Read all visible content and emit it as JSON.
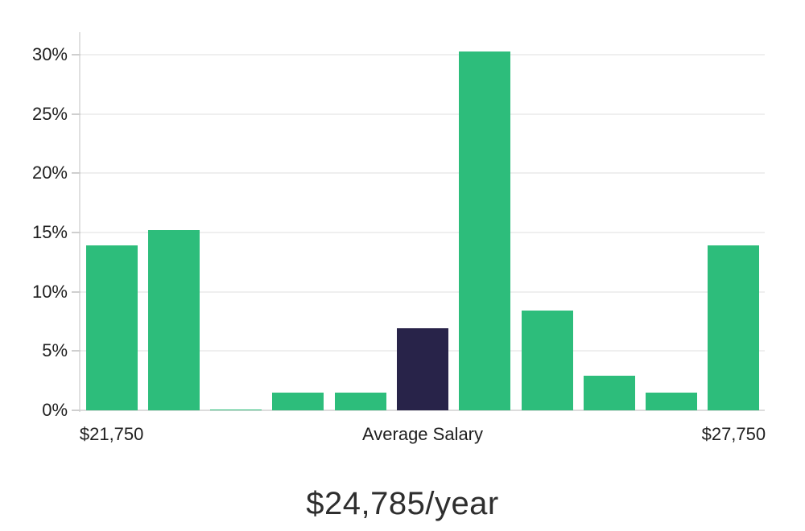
{
  "chart_data": {
    "type": "bar",
    "title": "$24,785/year",
    "subtitle": "",
    "xlabel": "",
    "ylabel": "",
    "categories": [
      "$21,750",
      "",
      "",
      "",
      "",
      "Average Salary",
      "",
      "",
      "",
      "",
      "$27,750"
    ],
    "values": [
      13.9,
      15.2,
      0.1,
      1.5,
      1.5,
      6.9,
      30.3,
      8.4,
      2.9,
      1.5,
      13.9
    ],
    "highlight_index": 5,
    "highlight_meaning": "Average Salary",
    "y_tick_labels": [
      "0%",
      "5%",
      "10%",
      "15%",
      "20%",
      "25%",
      "30%"
    ],
    "y_tick_values": [
      0,
      5,
      10,
      15,
      20,
      25,
      30
    ],
    "ylim": [
      0,
      31.9
    ],
    "grid": "horizontal-on",
    "legend": "none",
    "colors": {
      "bar": "#2dbd7b",
      "highlight_bar": "#282349",
      "gridline": "#efefef",
      "zero_line": "#dcdcdc",
      "axis_line": "#e0e0e0",
      "tick": "#cfcfcf",
      "tick_text": "#1f1f1f",
      "title_text": "#2e2e2e",
      "background": "#ffffff"
    }
  }
}
